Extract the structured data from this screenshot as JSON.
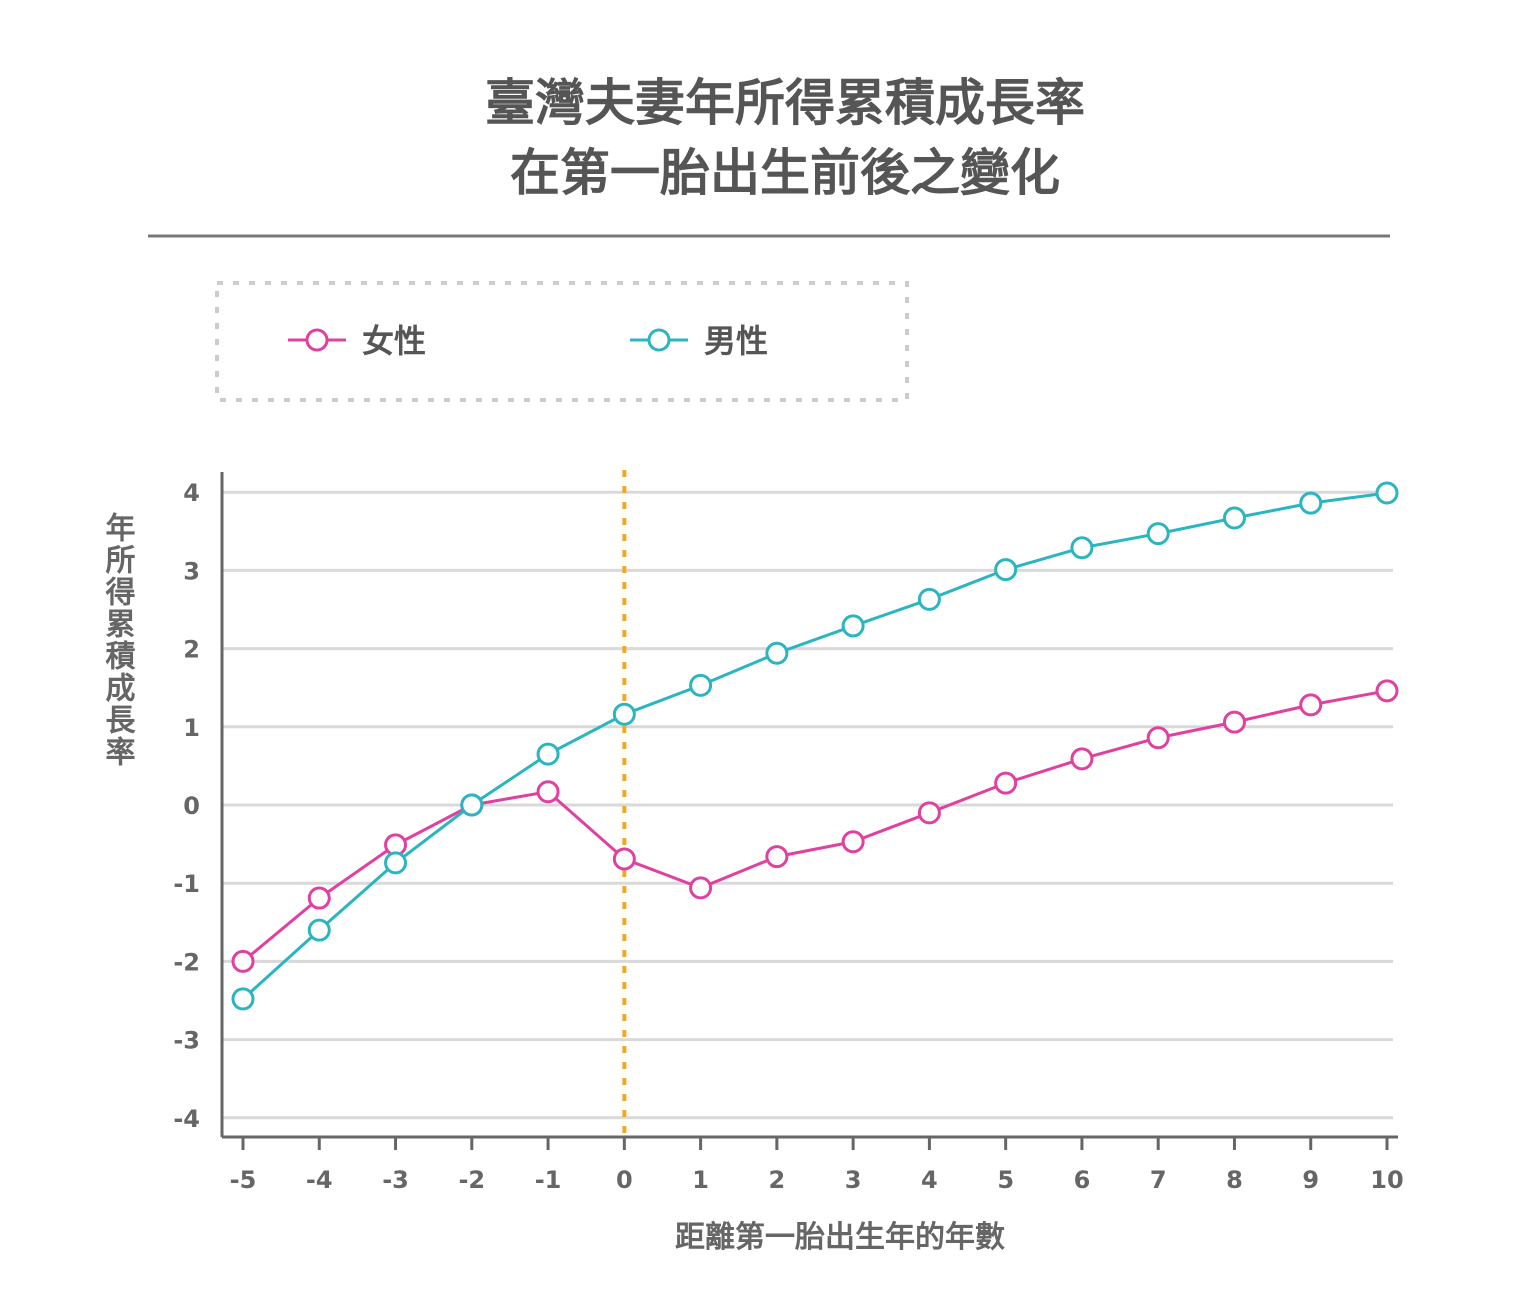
{
  "chart_data": {
    "type": "line",
    "title": [
      "臺灣夫妻年所得累積成長率",
      "在第一胎出生前後之變化"
    ],
    "xlabel": "距離第一胎出生年的年數",
    "ylabel": "年所得累積成長率",
    "x": [
      -5,
      -4,
      -3,
      -2,
      -1,
      0,
      1,
      2,
      3,
      4,
      5,
      6,
      7,
      8,
      9,
      10
    ],
    "xticks": [
      "-5",
      "-4",
      "-3",
      "-2",
      "-1",
      "0",
      "1",
      "2",
      "3",
      "4",
      "5",
      "6",
      "7",
      "8",
      "9",
      "10"
    ],
    "yticks": [
      "-4",
      "-3",
      "-2",
      "-1",
      "0",
      "1",
      "2",
      "3",
      "4"
    ],
    "ylim": [
      -4,
      4
    ],
    "xlim": [
      -5,
      10
    ],
    "grid": true,
    "legend_position": "top-left",
    "reference_line_x": 0,
    "series": [
      {
        "name": "女性",
        "color": "#e040a0",
        "values": [
          -2.0,
          -1.19,
          -0.51,
          0.0,
          0.17,
          -0.69,
          -1.06,
          -0.66,
          -0.47,
          -0.1,
          0.28,
          0.59,
          0.86,
          1.06,
          1.28,
          1.46
        ]
      },
      {
        "name": "男性",
        "color": "#2bb5c0",
        "values": [
          -2.48,
          -1.6,
          -0.74,
          0.0,
          0.65,
          1.16,
          1.53,
          1.94,
          2.29,
          2.63,
          3.01,
          3.29,
          3.47,
          3.67,
          3.86,
          3.99
        ]
      }
    ],
    "colors": {
      "reference": "#f5a623",
      "grid": "#d9d9d9",
      "axis": "#666666"
    }
  }
}
